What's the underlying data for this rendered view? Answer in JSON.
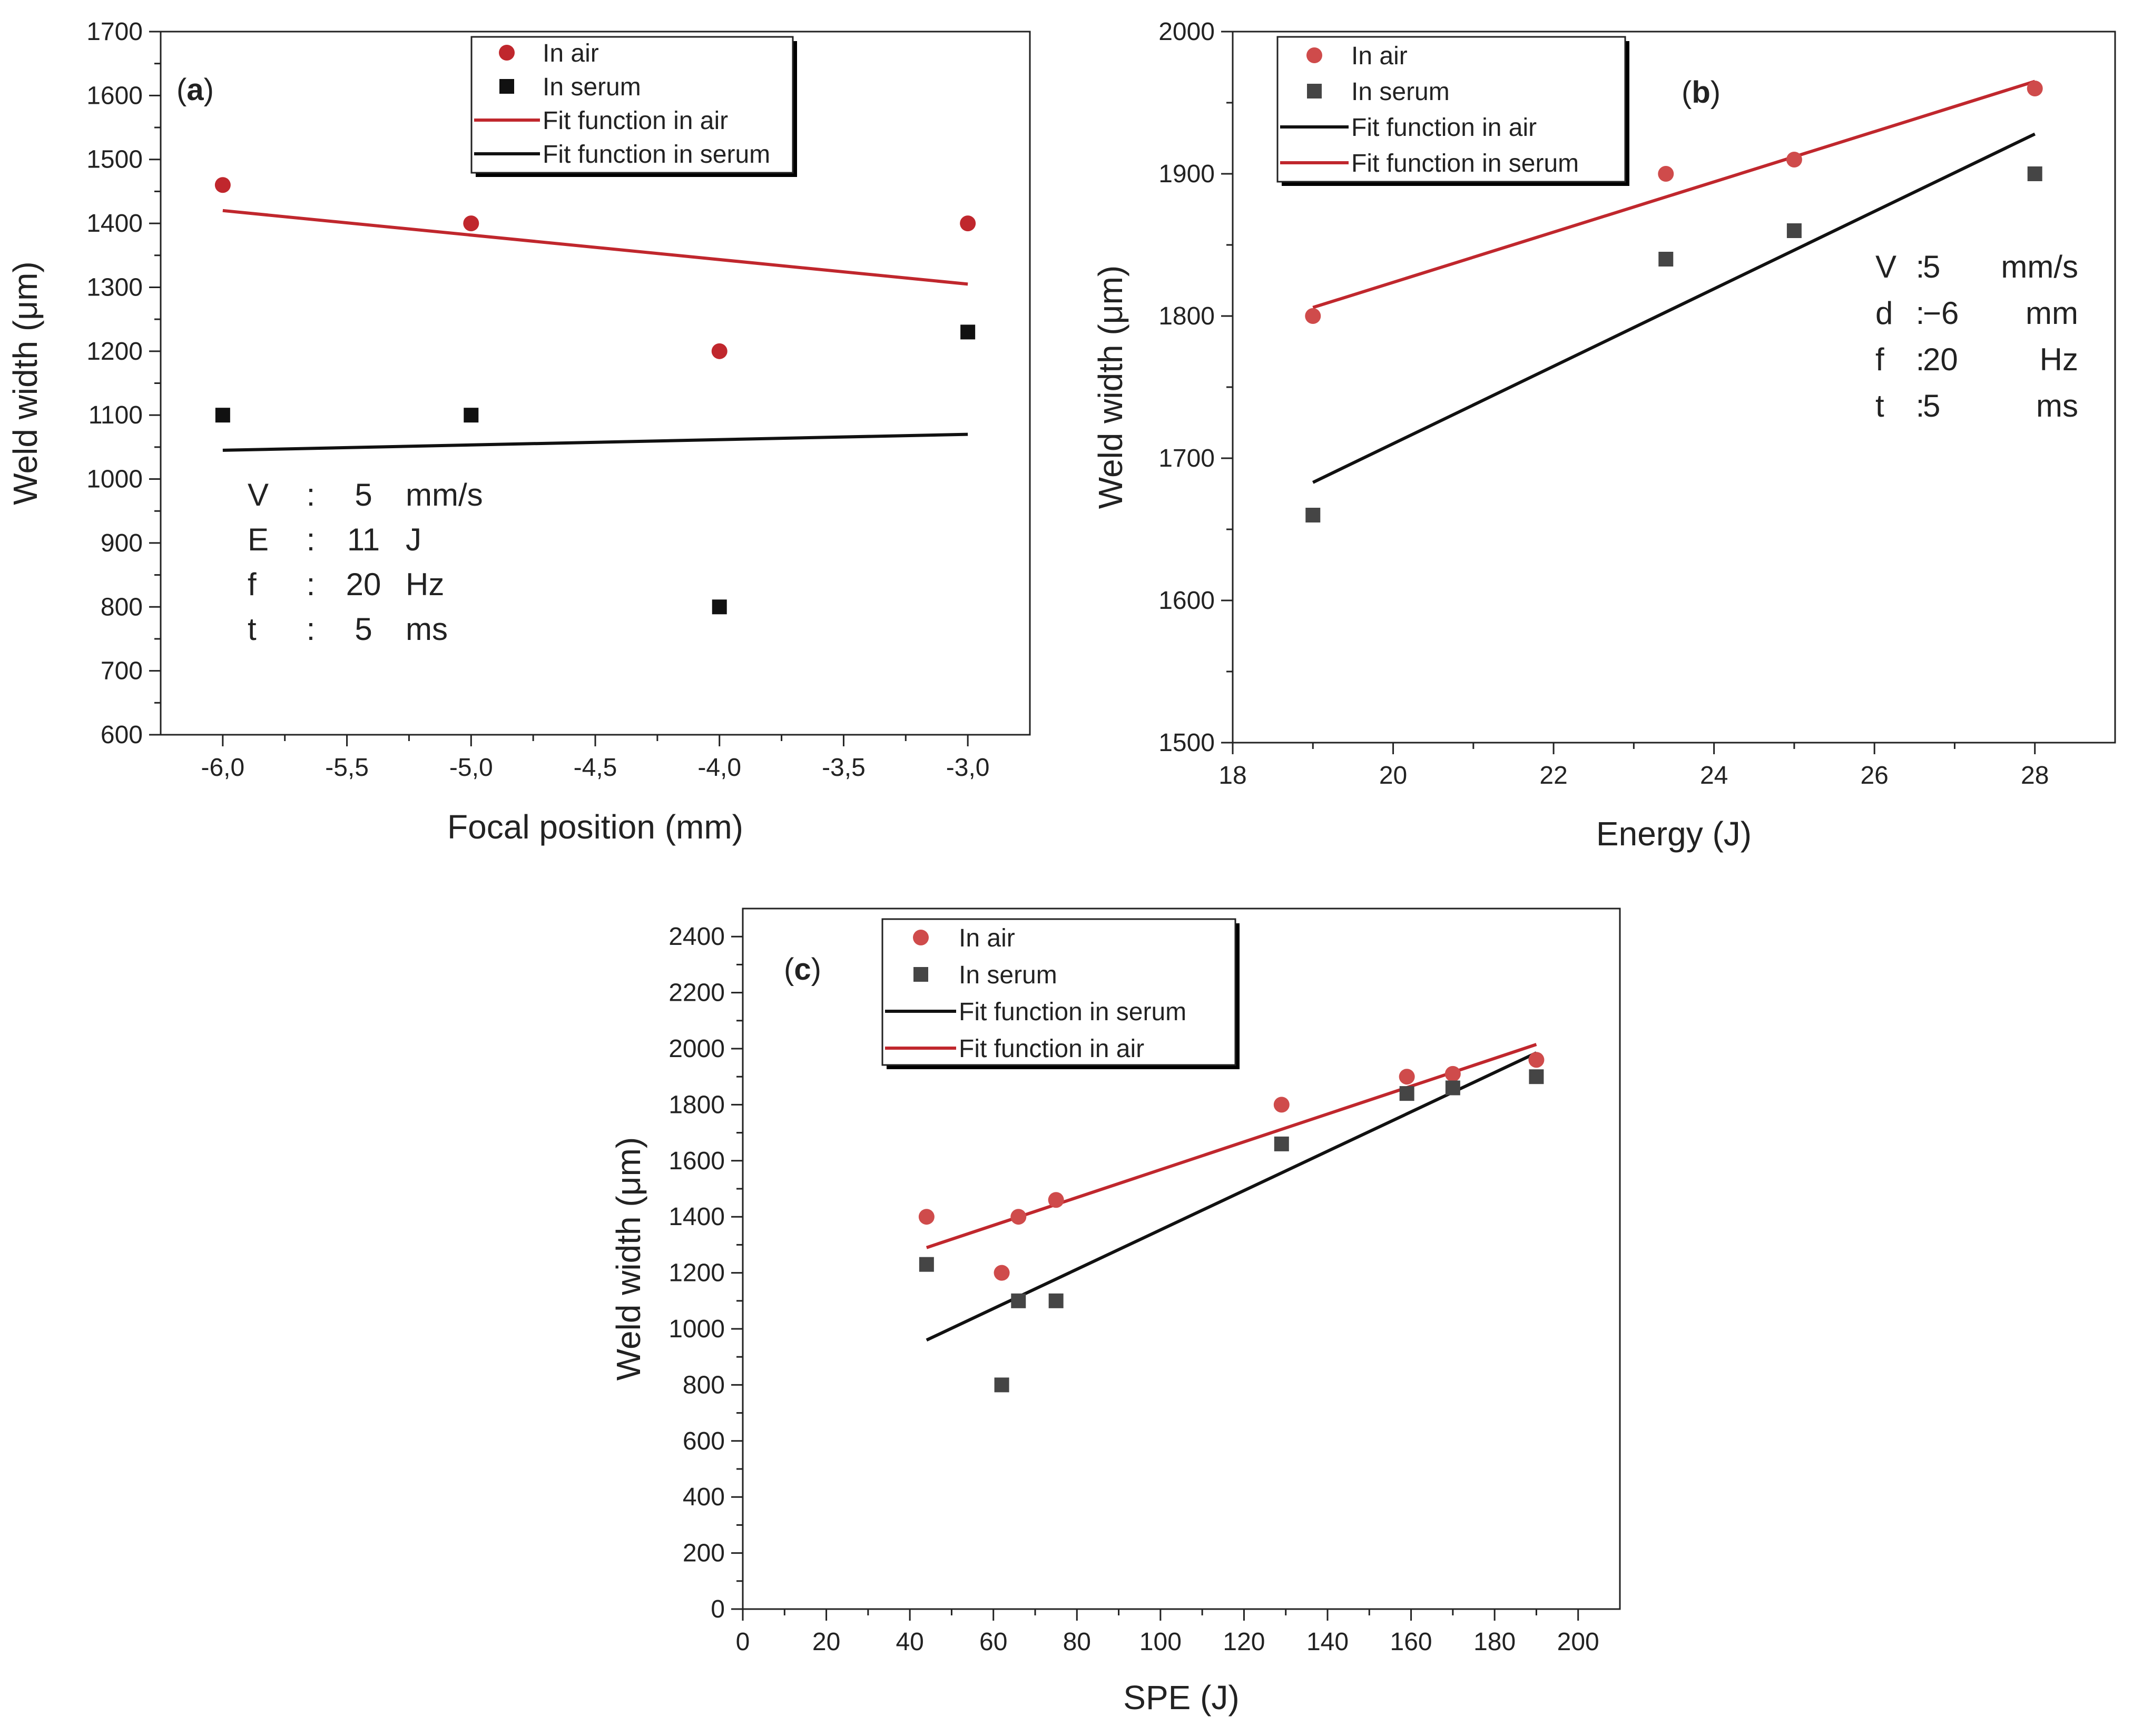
{
  "colors": {
    "air": "#c0272d",
    "air_marker": "#cf4b4b",
    "serum": "#111111",
    "serum_marker": "#454545",
    "axis": "#222222"
  },
  "chart_data": [
    {
      "id": "a",
      "type": "scatter",
      "panel_label": "(a)",
      "title": "",
      "xlabel": "Focal position (mm)",
      "ylabel": "Weld width (μm)",
      "xlim": [
        -6.25,
        -2.75
      ],
      "ylim": [
        600,
        1700
      ],
      "xticks": [
        -6.0,
        -5.5,
        -5.0,
        -4.5,
        -4.0,
        -3.5,
        -3.0
      ],
      "xtick_labels": [
        "-6,0",
        "-5,5",
        "-5,0",
        "-4,5",
        "-4,0",
        "-3,5",
        "-3,0"
      ],
      "yticks": [
        600,
        700,
        800,
        900,
        1000,
        1100,
        1200,
        1300,
        1400,
        1500,
        1600,
        1700
      ],
      "ytick_labels": [
        "600",
        "700",
        "800",
        "900",
        "1000",
        "1100",
        "1200",
        "1300",
        "1400",
        "1500",
        "1600",
        "1700"
      ],
      "legend_position": "top-center",
      "series": [
        {
          "name": "In air",
          "kind": "points",
          "marker": "circle",
          "color": "#c0272d",
          "x": [
            -6,
            -5,
            -4,
            -3
          ],
          "y": [
            1460,
            1400,
            1200,
            1400
          ]
        },
        {
          "name": "In serum",
          "kind": "points",
          "marker": "square",
          "color": "#111111",
          "x": [
            -6,
            -5,
            -4,
            -3
          ],
          "y": [
            1100,
            1100,
            800,
            1230
          ]
        },
        {
          "name": "Fit function in air",
          "kind": "line",
          "color": "#c0272d",
          "x": [
            -6,
            -3
          ],
          "y": [
            1420,
            1305
          ]
        },
        {
          "name": "Fit function in serum",
          "kind": "line",
          "color": "#111111",
          "x": [
            -6,
            -3
          ],
          "y": [
            1045,
            1070
          ]
        }
      ],
      "params": [
        {
          "name": "V",
          "sep": ":",
          "value": "5",
          "unit": "mm/s"
        },
        {
          "name": "E",
          "sep": ":",
          "value": "11",
          "unit": "J"
        },
        {
          "name": "f",
          "sep": ":",
          "value": "20",
          "unit": "Hz"
        },
        {
          "name": "t",
          "sep": ":",
          "value": "5",
          "unit": "ms"
        }
      ]
    },
    {
      "id": "b",
      "type": "scatter",
      "panel_label": "(b)",
      "title": "",
      "xlabel": "Energy (J)",
      "ylabel": "Weld width (μm)",
      "xlim": [
        18,
        29
      ],
      "ylim": [
        1500,
        2000
      ],
      "xticks": [
        18,
        20,
        22,
        24,
        26,
        28
      ],
      "xtick_labels": [
        "18",
        "20",
        "22",
        "24",
        "26",
        "28"
      ],
      "yticks": [
        1500,
        1600,
        1700,
        1800,
        1900,
        2000
      ],
      "ytick_labels": [
        "1500",
        "1600",
        "1700",
        "1800",
        "1900",
        "2000"
      ],
      "legend_position": "top-left",
      "series": [
        {
          "name": "In air",
          "kind": "points",
          "marker": "circle",
          "color": "#cf4b4b",
          "x": [
            19,
            23.4,
            25,
            28
          ],
          "y": [
            1800,
            1900,
            1910,
            1960
          ]
        },
        {
          "name": "In serum",
          "kind": "points",
          "marker": "square",
          "color": "#454545",
          "x": [
            19,
            23.4,
            25,
            28
          ],
          "y": [
            1660,
            1840,
            1860,
            1900
          ]
        },
        {
          "name": "Fit function in air",
          "kind": "line",
          "color": "#111111",
          "x": [
            19,
            28
          ],
          "y": [
            1683,
            1928
          ]
        },
        {
          "name": "Fit function in serum",
          "kind": "line",
          "color": "#c0272d",
          "x": [
            19,
            28
          ],
          "y": [
            1806,
            1965
          ]
        }
      ],
      "params": [
        {
          "name": "V",
          "sep": ":",
          "value": "5",
          "unit": "mm/s"
        },
        {
          "name": "d",
          "sep": ":",
          "value": "−6",
          "unit": "mm"
        },
        {
          "name": "f",
          "sep": ":",
          "value": "20",
          "unit": "Hz"
        },
        {
          "name": "t",
          "sep": ":",
          "value": "5",
          "unit": "ms"
        }
      ]
    },
    {
      "id": "c",
      "type": "scatter",
      "panel_label": "(c)",
      "title": "",
      "xlabel": "SPE (J)",
      "ylabel": "Weld width (μm)",
      "xlim": [
        0,
        210
      ],
      "ylim": [
        0,
        2500
      ],
      "xticks": [
        0,
        20,
        40,
        60,
        80,
        100,
        120,
        140,
        160,
        180,
        200
      ],
      "xtick_labels": [
        "0",
        "20",
        "40",
        "60",
        "80",
        "100",
        "120",
        "140",
        "160",
        "180",
        "200"
      ],
      "yticks": [
        0,
        200,
        400,
        600,
        800,
        1000,
        1200,
        1400,
        1600,
        1800,
        2000,
        2200,
        2400
      ],
      "ytick_labels": [
        "0",
        "200",
        "400",
        "600",
        "800",
        "1000",
        "1200",
        "1400",
        "1600",
        "1800",
        "2000",
        "2200",
        "2400"
      ],
      "legend_position": "top-left",
      "series": [
        {
          "name": "In air",
          "kind": "points",
          "marker": "circle",
          "color": "#cf4b4b",
          "x": [
            44,
            62,
            66,
            75,
            129,
            159,
            170,
            190
          ],
          "y": [
            1400,
            1200,
            1400,
            1460,
            1800,
            1900,
            1910,
            1960
          ]
        },
        {
          "name": "In serum",
          "kind": "points",
          "marker": "square",
          "color": "#454545",
          "x": [
            44,
            62,
            66,
            75,
            129,
            159,
            170,
            190
          ],
          "y": [
            1230,
            800,
            1100,
            1100,
            1660,
            1840,
            1860,
            1900
          ]
        },
        {
          "name": "Fit function in serum",
          "kind": "line",
          "color": "#111111",
          "x": [
            44,
            190
          ],
          "y": [
            960,
            1985
          ]
        },
        {
          "name": "Fit function in air",
          "kind": "line",
          "color": "#c0272d",
          "x": [
            44,
            190
          ],
          "y": [
            1290,
            2015
          ]
        }
      ],
      "params": []
    }
  ]
}
